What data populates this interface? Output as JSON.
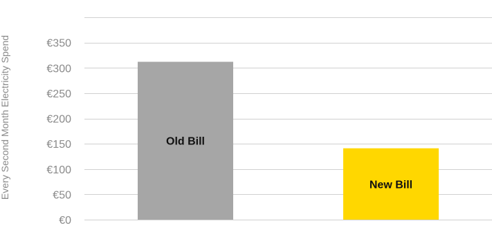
{
  "chart_data": {
    "type": "bar",
    "ylabel": "Every Second Month Electricity Spend",
    "categories": [
      "Old Bill",
      "New Bill"
    ],
    "values": [
      312,
      141
    ],
    "bar_labels": [
      "Old Bill",
      "New Bill"
    ],
    "colors": [
      "#a6a6a6",
      "#ffd700"
    ],
    "ylim": [
      0,
      400
    ],
    "yticks": [
      0,
      50,
      100,
      150,
      200,
      250,
      300,
      350
    ],
    "ytick_labels": [
      "€0",
      "€50",
      "€100",
      "€150",
      "€200",
      "€250",
      "€300",
      "€350"
    ],
    "grid": true,
    "legend": false
  }
}
